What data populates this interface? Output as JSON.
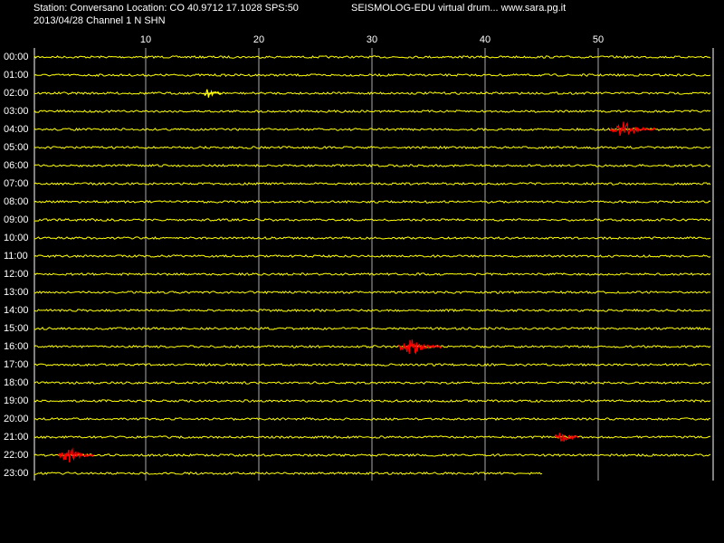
{
  "chart_data": {
    "type": "helicorder",
    "title": "Station: Conversano Location: CO 40.9712 17.1028 SPS:50",
    "subtitle": "SEISMOLOG-EDU virtual drum... www.sara.pg.it",
    "date_channel": "2013/04/28  Channel 1 N SHN",
    "categories": [
      "00:00",
      "01:00",
      "02:00",
      "03:00",
      "04:00",
      "05:00",
      "06:00",
      "07:00",
      "08:00",
      "09:00",
      "10:00",
      "11:00",
      "12:00",
      "13:00",
      "14:00",
      "15:00",
      "16:00",
      "17:00",
      "18:00",
      "19:00",
      "20:00",
      "21:00",
      "22:00",
      "23:00"
    ],
    "xlim": [
      0,
      60
    ],
    "xticks": [
      10,
      20,
      30,
      40,
      50
    ],
    "trace_color": "#ffff00",
    "grid": true,
    "last_row_end": 45.1,
    "events": [
      {
        "row": "02:00",
        "start": 15.1,
        "end": 16.7,
        "color": "#ffff00"
      },
      {
        "row": "04:00",
        "start": 51.1,
        "end": 55.1,
        "color": "#ff0000"
      },
      {
        "row": "16:00",
        "start": 32.4,
        "end": 36.2,
        "color": "#ff0000"
      },
      {
        "row": "21:00",
        "start": 46.2,
        "end": 48.3,
        "color": "#ff0000"
      },
      {
        "row": "22:00",
        "start": 2.3,
        "end": 5.4,
        "color": "#ff0000"
      }
    ]
  }
}
